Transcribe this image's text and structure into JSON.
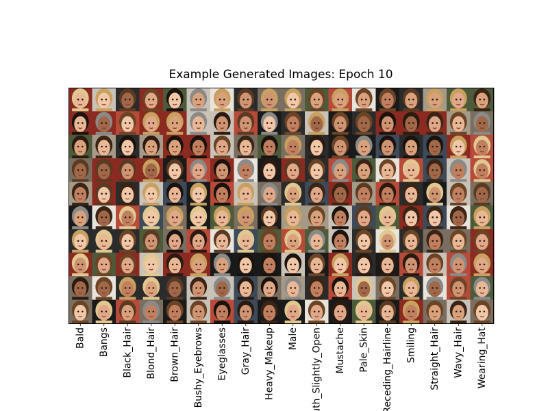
{
  "title": "Example Generated Images: Epoch 10",
  "columns": [
    "Bald",
    "Bangs",
    "Black_Hair",
    "Blond_Hair",
    "Brown_Hair",
    "Bushy_Eyebrows",
    "Eyeglasses",
    "Gray_Hair",
    "Heavy_Makeup",
    "Male",
    "Mouth_Slightly_Open",
    "Mustache",
    "Pale_Skin",
    "Receding_Hairline",
    "Smiling",
    "Straight_Hair",
    "Wavy_Hair",
    "Wearing_Hat"
  ]
}
